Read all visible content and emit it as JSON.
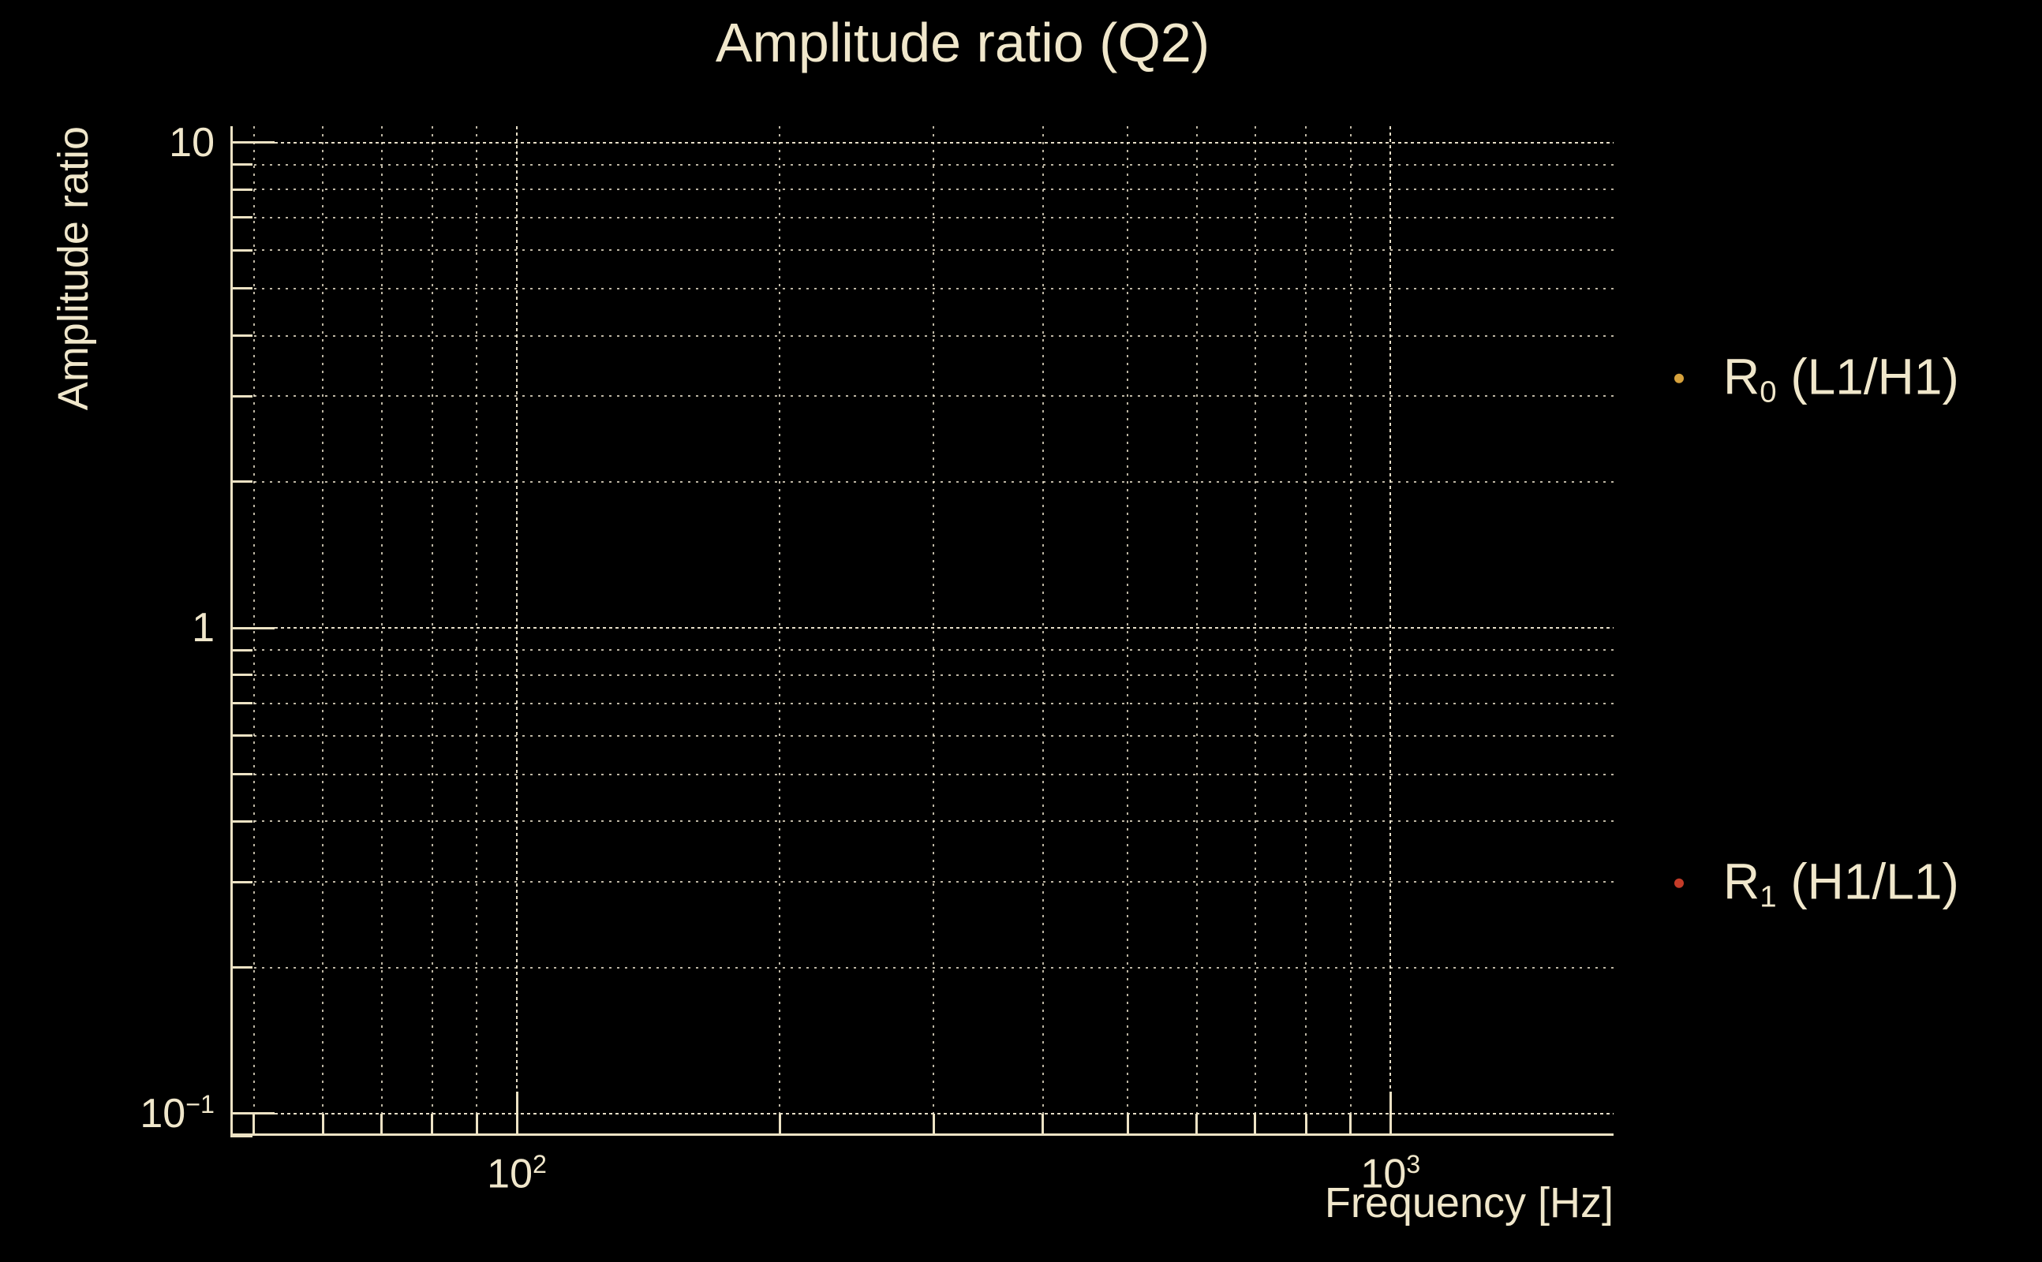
{
  "figure": {
    "title": "Amplitude ratio (Q2)",
    "background_color": "#000000",
    "text_color": "#f0e7cb",
    "grid_color": "#f3ead2",
    "spine_color": "#ece2c4"
  },
  "axes": {
    "xlabel": "Frequency [Hz]",
    "ylabel": "Amplitude ratio",
    "x_major_ticks": [
      {
        "base": "10",
        "exp": "2"
      },
      {
        "base": "10",
        "exp": "3"
      }
    ],
    "y_major_ticks": [
      {
        "base": "10",
        "exp": ""
      },
      {
        "base": "1",
        "exp": ""
      },
      {
        "base": "10",
        "exp": "−1"
      }
    ]
  },
  "legend": {
    "items": [
      {
        "label_base": "R",
        "label_sub": "0",
        "label_rest": " (L1/H1)",
        "marker_color": "#d7a23c"
      },
      {
        "label_base": "R",
        "label_sub": "1",
        "label_rest": " (H1/L1)",
        "marker_color": "#c43b28"
      }
    ]
  },
  "chart_data": {
    "type": "scatter",
    "title": "Amplitude ratio (Q2)",
    "xlabel": "Frequency [Hz]",
    "ylabel": "Amplitude ratio",
    "x_scale": "log",
    "y_scale": "log",
    "xlim": [
      47,
      1800
    ],
    "ylim": [
      0.09,
      10.8
    ],
    "x_major_tick_values": [
      100,
      1000
    ],
    "y_major_tick_values": [
      10,
      1,
      0.1
    ],
    "grid": {
      "shown": "both",
      "major_style": "dotted",
      "minor_style": "dotted"
    },
    "legend_position": "outside-right",
    "series": [
      {
        "name": "R0 (L1/H1)",
        "marker": "point",
        "marker_color": "#d7a23c",
        "x": [],
        "y": []
      },
      {
        "name": "R1 (H1/L1)",
        "marker": "point",
        "marker_color": "#c43b28",
        "x": [],
        "y": []
      }
    ],
    "note": "plot area shows gridlines only; no data points are visible"
  }
}
